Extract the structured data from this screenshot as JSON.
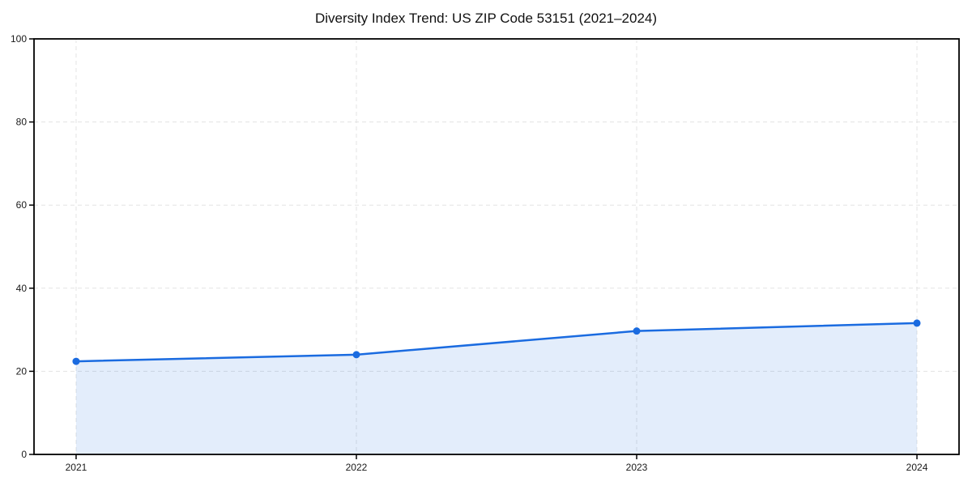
{
  "chart_data": {
    "type": "line",
    "title": "Diversity Index Trend: US ZIP Code 53151 (2021–2024)",
    "x": [
      "2021",
      "2022",
      "2023",
      "2024"
    ],
    "series": [
      {
        "name": "Diversity Index",
        "values": [
          22.4,
          24.0,
          29.7,
          31.6
        ]
      }
    ],
    "xlabel": "",
    "ylabel": "",
    "ylim": [
      0,
      100
    ],
    "yticks": [
      0,
      20,
      40,
      60,
      80,
      100
    ],
    "grid": "dashed, both axes",
    "legend": "none",
    "area_fill": true,
    "area_fill_extent": "between first and last x only, down to y=0",
    "marker": "filled circle",
    "style": {
      "line_color": "#1a6be0",
      "marker_color": "#1a6be0",
      "fill_color": "rgba(26,107,224,0.12)",
      "grid_color": "#e3e3e3",
      "spine_color": "#000000",
      "tick_label_color": "#1a1a1a",
      "title_color": "#111111",
      "background": "#ffffff"
    }
  }
}
